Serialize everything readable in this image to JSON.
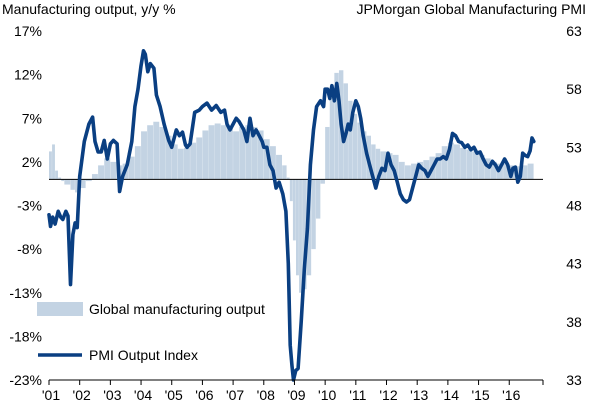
{
  "chart_data": {
    "type": "bar+line",
    "title_left": "Manufacturing output, y/y %",
    "title_right": "JPMorgan Global Manufacturing PMI",
    "left_axis": {
      "ylim": [
        -23,
        17
      ],
      "ticks": [
        "17%",
        "12%",
        "7%",
        "2%",
        "-3%",
        "-8%",
        "-13%",
        "-18%",
        "-23%"
      ],
      "tick_values": [
        17,
        12,
        7,
        2,
        -3,
        -8,
        -13,
        -18,
        -23
      ]
    },
    "right_axis": {
      "ylim": [
        33,
        63
      ],
      "ticks": [
        "63",
        "58",
        "53",
        "48",
        "43",
        "38",
        "33"
      ],
      "tick_values": [
        63,
        58,
        53,
        48,
        43,
        38,
        33
      ]
    },
    "x_axis": {
      "range": [
        2001.0,
        2017.1
      ],
      "ticks": [
        "'01",
        "'02",
        "'03",
        "'04",
        "'05",
        "'06",
        "'07",
        "'08",
        "'09",
        "'10",
        "'11",
        "'12",
        "'13",
        "'14",
        "'15",
        "'16"
      ],
      "tick_values": [
        2001,
        2002,
        2003,
        2004,
        2005,
        2006,
        2007,
        2008,
        2009,
        2010,
        2011,
        2012,
        2013,
        2014,
        2015,
        2016
      ]
    },
    "legend_placement": "bottom-left",
    "grid": false,
    "series": [
      {
        "name": "Global manufacturing output",
        "kind": "bar",
        "axis": "left",
        "color": "#c3d3e3",
        "points": [
          [
            2001.0,
            3.2
          ],
          [
            2001.1,
            4.0
          ],
          [
            2001.2,
            1.0
          ],
          [
            2001.3,
            0.2
          ],
          [
            2001.4,
            -0.2
          ],
          [
            2001.5,
            -0.6
          ],
          [
            2001.7,
            -1.2
          ],
          [
            2001.85,
            -1.5
          ],
          [
            2002.0,
            -1.0
          ],
          [
            2002.2,
            -0.2
          ],
          [
            2002.4,
            0.6
          ],
          [
            2002.6,
            1.6
          ],
          [
            2002.8,
            2.4
          ],
          [
            2003.0,
            2.0
          ],
          [
            2003.2,
            1.6
          ],
          [
            2003.4,
            1.8
          ],
          [
            2003.6,
            2.6
          ],
          [
            2003.8,
            3.8
          ],
          [
            2004.0,
            5.5
          ],
          [
            2004.2,
            6.2
          ],
          [
            2004.4,
            6.6
          ],
          [
            2004.6,
            6.0
          ],
          [
            2004.8,
            5.0
          ],
          [
            2005.0,
            4.0
          ],
          [
            2005.2,
            3.5
          ],
          [
            2005.4,
            3.6
          ],
          [
            2005.6,
            4.2
          ],
          [
            2005.8,
            4.8
          ],
          [
            2006.0,
            5.6
          ],
          [
            2006.2,
            6.2
          ],
          [
            2006.4,
            6.4
          ],
          [
            2006.6,
            6.2
          ],
          [
            2006.8,
            6.0
          ],
          [
            2007.0,
            5.5
          ],
          [
            2007.2,
            6.0
          ],
          [
            2007.4,
            6.2
          ],
          [
            2007.6,
            6.0
          ],
          [
            2007.8,
            5.6
          ],
          [
            2008.0,
            4.6
          ],
          [
            2008.2,
            3.8
          ],
          [
            2008.4,
            2.8
          ],
          [
            2008.6,
            1.6
          ],
          [
            2008.75,
            0.2
          ],
          [
            2008.85,
            -2.5
          ],
          [
            2008.95,
            -7.0
          ],
          [
            2009.05,
            -11.0
          ],
          [
            2009.15,
            -13.0
          ],
          [
            2009.25,
            -12.6
          ],
          [
            2009.4,
            -11.0
          ],
          [
            2009.55,
            -8.0
          ],
          [
            2009.7,
            -4.5
          ],
          [
            2009.85,
            -0.5
          ],
          [
            2010.0,
            6.0
          ],
          [
            2010.15,
            10.5
          ],
          [
            2010.3,
            12.2
          ],
          [
            2010.45,
            12.5
          ],
          [
            2010.6,
            11.0
          ],
          [
            2010.75,
            9.0
          ],
          [
            2010.9,
            7.5
          ],
          [
            2011.05,
            6.5
          ],
          [
            2011.2,
            5.5
          ],
          [
            2011.35,
            5.0
          ],
          [
            2011.5,
            4.0
          ],
          [
            2011.65,
            3.5
          ],
          [
            2011.8,
            3.2
          ],
          [
            2012.0,
            3.0
          ],
          [
            2012.2,
            2.8
          ],
          [
            2012.4,
            2.0
          ],
          [
            2012.6,
            1.6
          ],
          [
            2012.8,
            1.8
          ],
          [
            2013.0,
            2.0
          ],
          [
            2013.2,
            2.2
          ],
          [
            2013.4,
            2.6
          ],
          [
            2013.6,
            3.0
          ],
          [
            2013.8,
            3.8
          ],
          [
            2014.0,
            4.2
          ],
          [
            2014.2,
            4.0
          ],
          [
            2014.4,
            3.6
          ],
          [
            2014.6,
            3.4
          ],
          [
            2014.8,
            3.2
          ],
          [
            2015.0,
            2.8
          ],
          [
            2015.2,
            2.4
          ],
          [
            2015.4,
            2.0
          ],
          [
            2015.6,
            1.8
          ],
          [
            2015.8,
            1.8
          ],
          [
            2016.0,
            1.6
          ],
          [
            2016.2,
            1.5
          ],
          [
            2016.4,
            1.6
          ],
          [
            2016.6,
            1.8
          ]
        ]
      },
      {
        "name": "PMI Output Index",
        "kind": "line",
        "axis": "right",
        "color": "#0a3f82",
        "points": [
          [
            2001.0,
            47.2
          ],
          [
            2001.05,
            46.2
          ],
          [
            2001.12,
            47.0
          ],
          [
            2001.2,
            46.4
          ],
          [
            2001.3,
            47.5
          ],
          [
            2001.38,
            47.0
          ],
          [
            2001.45,
            46.8
          ],
          [
            2001.55,
            47.5
          ],
          [
            2001.62,
            47.1
          ],
          [
            2001.7,
            41.2
          ],
          [
            2001.78,
            45.5
          ],
          [
            2001.85,
            46.5
          ],
          [
            2001.92,
            46.1
          ],
          [
            2002.0,
            50.5
          ],
          [
            2002.15,
            53.5
          ],
          [
            2002.3,
            55.0
          ],
          [
            2002.42,
            55.6
          ],
          [
            2002.5,
            53.5
          ],
          [
            2002.6,
            52.6
          ],
          [
            2002.7,
            52.6
          ],
          [
            2002.8,
            53.6
          ],
          [
            2002.9,
            52.0
          ],
          [
            2003.0,
            53.3
          ],
          [
            2003.1,
            53.6
          ],
          [
            2003.22,
            53.3
          ],
          [
            2003.3,
            49.2
          ],
          [
            2003.4,
            50.5
          ],
          [
            2003.55,
            51.5
          ],
          [
            2003.7,
            53.5
          ],
          [
            2003.8,
            56.5
          ],
          [
            2003.9,
            58.0
          ],
          [
            2004.0,
            60.0
          ],
          [
            2004.08,
            61.3
          ],
          [
            2004.14,
            61.0
          ],
          [
            2004.22,
            59.5
          ],
          [
            2004.3,
            60.2
          ],
          [
            2004.42,
            59.8
          ],
          [
            2004.5,
            57.5
          ],
          [
            2004.62,
            56.5
          ],
          [
            2004.75,
            55.0
          ],
          [
            2004.9,
            53.6
          ],
          [
            2005.0,
            53.0
          ],
          [
            2005.15,
            54.5
          ],
          [
            2005.25,
            54.0
          ],
          [
            2005.35,
            54.3
          ],
          [
            2005.45,
            53.2
          ],
          [
            2005.5,
            53.0
          ],
          [
            2005.6,
            53.3
          ],
          [
            2005.75,
            56.0
          ],
          [
            2005.9,
            56.2
          ],
          [
            2006.0,
            56.5
          ],
          [
            2006.15,
            56.8
          ],
          [
            2006.3,
            56.2
          ],
          [
            2006.45,
            56.6
          ],
          [
            2006.6,
            56.0
          ],
          [
            2006.72,
            56.2
          ],
          [
            2006.8,
            55.0
          ],
          [
            2006.9,
            54.5
          ],
          [
            2007.0,
            55.0
          ],
          [
            2007.1,
            55.5
          ],
          [
            2007.2,
            55.2
          ],
          [
            2007.35,
            54.5
          ],
          [
            2007.45,
            53.5
          ],
          [
            2007.55,
            55.5
          ],
          [
            2007.65,
            54.0
          ],
          [
            2007.75,
            54.5
          ],
          [
            2007.85,
            54.0
          ],
          [
            2007.95,
            53.5
          ],
          [
            2008.0,
            53.0
          ],
          [
            2008.1,
            53.0
          ],
          [
            2008.2,
            51.5
          ],
          [
            2008.3,
            51.0
          ],
          [
            2008.4,
            49.5
          ],
          [
            2008.5,
            50.0
          ],
          [
            2008.62,
            49.0
          ],
          [
            2008.72,
            47.5
          ],
          [
            2008.8,
            43.0
          ],
          [
            2008.86,
            36.0
          ],
          [
            2008.92,
            34.2
          ],
          [
            2008.97,
            33.0
          ],
          [
            2009.04,
            33.8
          ],
          [
            2009.12,
            34.0
          ],
          [
            2009.22,
            38.0
          ],
          [
            2009.32,
            42.5
          ],
          [
            2009.42,
            46.0
          ],
          [
            2009.52,
            51.5
          ],
          [
            2009.62,
            54.5
          ],
          [
            2009.72,
            56.5
          ],
          [
            2009.85,
            57.0
          ],
          [
            2009.95,
            56.5
          ],
          [
            2010.0,
            58.0
          ],
          [
            2010.08,
            58.0
          ],
          [
            2010.15,
            57.2
          ],
          [
            2010.22,
            58.3
          ],
          [
            2010.3,
            57.0
          ],
          [
            2010.38,
            58.5
          ],
          [
            2010.45,
            57.0
          ],
          [
            2010.52,
            55.0
          ],
          [
            2010.6,
            53.5
          ],
          [
            2010.68,
            54.2
          ],
          [
            2010.75,
            55.0
          ],
          [
            2010.82,
            54.5
          ],
          [
            2010.9,
            56.0
          ],
          [
            2011.0,
            57.0
          ],
          [
            2011.08,
            56.5
          ],
          [
            2011.16,
            55.5
          ],
          [
            2011.24,
            54.0
          ],
          [
            2011.35,
            52.5
          ],
          [
            2011.45,
            51.5
          ],
          [
            2011.55,
            50.5
          ],
          [
            2011.65,
            49.5
          ],
          [
            2011.75,
            50.5
          ],
          [
            2011.85,
            51.2
          ],
          [
            2011.95,
            51.0
          ],
          [
            2012.05,
            52.5
          ],
          [
            2012.15,
            51.5
          ],
          [
            2012.25,
            51.0
          ],
          [
            2012.35,
            50.0
          ],
          [
            2012.45,
            49.0
          ],
          [
            2012.55,
            48.5
          ],
          [
            2012.65,
            48.3
          ],
          [
            2012.75,
            48.5
          ],
          [
            2012.85,
            49.5
          ],
          [
            2012.95,
            50.5
          ],
          [
            2013.05,
            51.5
          ],
          [
            2013.15,
            51.2
          ],
          [
            2013.25,
            51.0
          ],
          [
            2013.35,
            50.5
          ],
          [
            2013.45,
            51.0
          ],
          [
            2013.55,
            51.5
          ],
          [
            2013.65,
            52.0
          ],
          [
            2013.75,
            52.0
          ],
          [
            2013.85,
            52.2
          ],
          [
            2013.95,
            52.0
          ],
          [
            2014.05,
            52.8
          ],
          [
            2014.15,
            54.2
          ],
          [
            2014.25,
            54.0
          ],
          [
            2014.35,
            53.5
          ],
          [
            2014.45,
            53.4
          ],
          [
            2014.55,
            53.0
          ],
          [
            2014.65,
            53.2
          ],
          [
            2014.75,
            52.8
          ],
          [
            2014.85,
            53.0
          ],
          [
            2014.95,
            52.5
          ],
          [
            2015.05,
            52.6
          ],
          [
            2015.15,
            52.0
          ],
          [
            2015.25,
            51.5
          ],
          [
            2015.35,
            51.3
          ],
          [
            2015.45,
            51.8
          ],
          [
            2015.55,
            51.5
          ],
          [
            2015.65,
            51.0
          ],
          [
            2015.75,
            51.5
          ],
          [
            2015.85,
            52.0
          ],
          [
            2015.95,
            51.5
          ],
          [
            2016.05,
            50.5
          ],
          [
            2016.12,
            51.2
          ],
          [
            2016.2,
            51.3
          ],
          [
            2016.28,
            50.0
          ],
          [
            2016.36,
            50.5
          ],
          [
            2016.44,
            52.5
          ],
          [
            2016.52,
            52.3
          ],
          [
            2016.6,
            52.2
          ],
          [
            2016.68,
            52.7
          ],
          [
            2016.74,
            53.8
          ],
          [
            2016.8,
            53.5
          ]
        ]
      }
    ]
  }
}
